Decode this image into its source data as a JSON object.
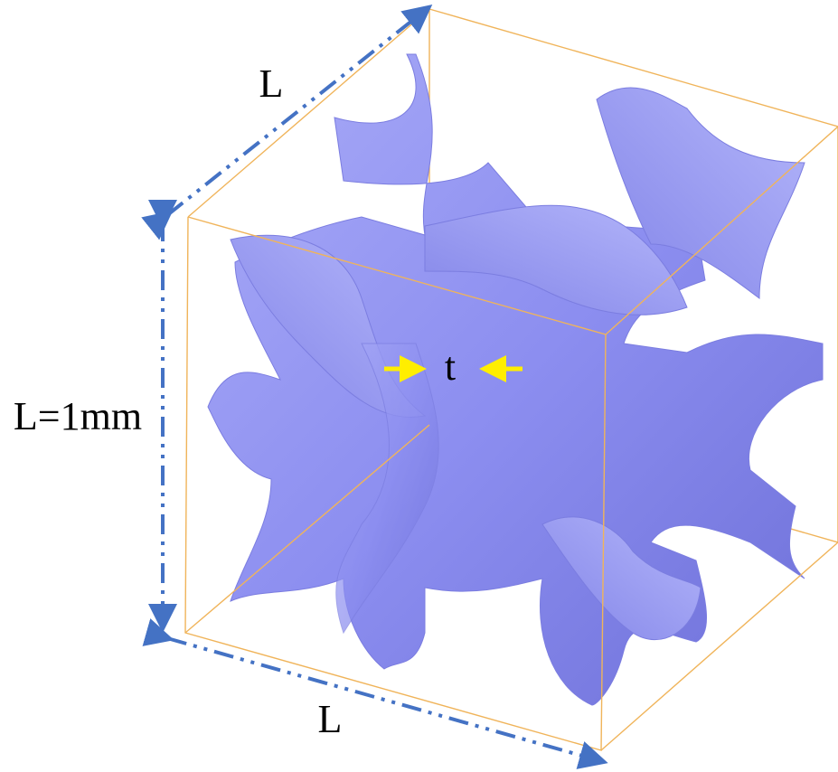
{
  "labels": {
    "top_edge": "L",
    "left_edge": "L=1mm",
    "bottom_edge": "L",
    "thickness": "t"
  }
}
